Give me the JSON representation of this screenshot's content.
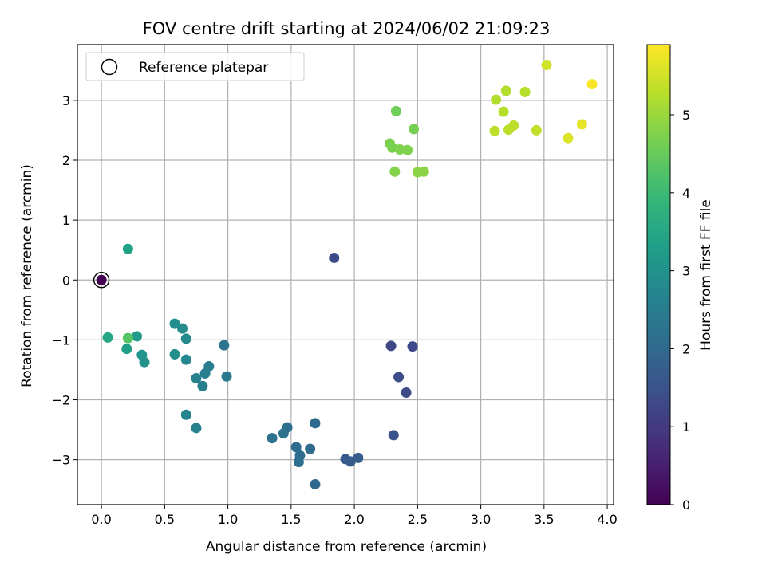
{
  "chart_data": {
    "type": "scatter",
    "title": "FOV centre drift starting at 2024/06/02 21:09:23",
    "xlabel": "Angular distance from reference (arcmin)",
    "ylabel": "Rotation from reference (arcmin)",
    "xlim": [
      -0.19,
      4.05
    ],
    "ylim": [
      -3.75,
      3.93
    ],
    "xticks": [
      0.0,
      0.5,
      1.0,
      1.5,
      2.0,
      2.5,
      3.0,
      3.5,
      4.0
    ],
    "xtick_labels": [
      "0.0",
      "0.5",
      "1.0",
      "1.5",
      "2.0",
      "2.5",
      "3.0",
      "3.5",
      "4.0"
    ],
    "yticks": [
      -3,
      -2,
      -1,
      0,
      1,
      2,
      3
    ],
    "ytick_labels": [
      "−3",
      "−2",
      "−1",
      "0",
      "1",
      "2",
      "3"
    ],
    "grid": true,
    "colormap": "viridis",
    "colorbar": {
      "label": "Hours from first FF file",
      "range": [
        0,
        5.9
      ],
      "ticks": [
        0,
        1,
        2,
        3,
        4,
        5
      ],
      "tick_labels": [
        "0",
        "1",
        "2",
        "3",
        "4",
        "5"
      ]
    },
    "legend": {
      "placement": "upper-left",
      "entries": [
        {
          "label": "Reference platepar",
          "marker": "open-circle"
        }
      ]
    },
    "reference_point": {
      "x": 0.0,
      "y": 0.0
    },
    "points": [
      {
        "x": 0.0,
        "y": 0.0,
        "c": 0.0
      },
      {
        "x": 1.84,
        "y": 0.37,
        "c": 1.3
      },
      {
        "x": 2.29,
        "y": -1.1,
        "c": 1.25
      },
      {
        "x": 2.46,
        "y": -1.11,
        "c": 1.3
      },
      {
        "x": 2.35,
        "y": -1.62,
        "c": 1.4
      },
      {
        "x": 2.41,
        "y": -1.88,
        "c": 1.35
      },
      {
        "x": 2.31,
        "y": -2.59,
        "c": 1.5
      },
      {
        "x": 1.93,
        "y": -2.99,
        "c": 1.7
      },
      {
        "x": 1.97,
        "y": -3.03,
        "c": 1.7
      },
      {
        "x": 2.03,
        "y": -2.97,
        "c": 1.75
      },
      {
        "x": 1.69,
        "y": -3.41,
        "c": 2.0
      },
      {
        "x": 1.69,
        "y": -2.39,
        "c": 2.0
      },
      {
        "x": 1.65,
        "y": -2.82,
        "c": 2.05
      },
      {
        "x": 1.54,
        "y": -2.79,
        "c": 2.1
      },
      {
        "x": 1.57,
        "y": -2.93,
        "c": 2.1
      },
      {
        "x": 1.56,
        "y": -3.04,
        "c": 2.15
      },
      {
        "x": 1.47,
        "y": -2.46,
        "c": 2.15
      },
      {
        "x": 1.44,
        "y": -2.56,
        "c": 2.2
      },
      {
        "x": 1.35,
        "y": -2.64,
        "c": 2.2
      },
      {
        "x": 0.97,
        "y": -1.09,
        "c": 2.3
      },
      {
        "x": 0.99,
        "y": -1.61,
        "c": 2.4
      },
      {
        "x": 0.85,
        "y": -1.44,
        "c": 2.5
      },
      {
        "x": 0.82,
        "y": -1.56,
        "c": 2.5
      },
      {
        "x": 0.8,
        "y": -1.77,
        "c": 2.55
      },
      {
        "x": 0.75,
        "y": -1.64,
        "c": 2.6
      },
      {
        "x": 0.75,
        "y": -2.47,
        "c": 2.6
      },
      {
        "x": 0.67,
        "y": -2.25,
        "c": 2.7
      },
      {
        "x": 0.67,
        "y": -1.33,
        "c": 2.75
      },
      {
        "x": 0.67,
        "y": -0.98,
        "c": 2.8
      },
      {
        "x": 0.64,
        "y": -0.81,
        "c": 2.85
      },
      {
        "x": 0.58,
        "y": -0.73,
        "c": 2.9
      },
      {
        "x": 0.58,
        "y": -1.24,
        "c": 2.9
      },
      {
        "x": 0.34,
        "y": -1.37,
        "c": 3.0
      },
      {
        "x": 0.32,
        "y": -1.25,
        "c": 3.05
      },
      {
        "x": 0.28,
        "y": -0.94,
        "c": 3.2
      },
      {
        "x": 0.2,
        "y": -1.15,
        "c": 3.3
      },
      {
        "x": 0.21,
        "y": 0.52,
        "c": 3.4
      },
      {
        "x": 0.05,
        "y": -0.96,
        "c": 3.5
      },
      {
        "x": 0.21,
        "y": -0.97,
        "c": 4.3
      },
      {
        "x": 2.33,
        "y": 2.82,
        "c": 4.6
      },
      {
        "x": 2.47,
        "y": 2.52,
        "c": 4.65
      },
      {
        "x": 2.28,
        "y": 2.28,
        "c": 4.7
      },
      {
        "x": 2.3,
        "y": 2.21,
        "c": 4.7
      },
      {
        "x": 2.36,
        "y": 2.18,
        "c": 4.75
      },
      {
        "x": 2.42,
        "y": 2.17,
        "c": 4.75
      },
      {
        "x": 2.32,
        "y": 1.81,
        "c": 4.8
      },
      {
        "x": 2.5,
        "y": 1.8,
        "c": 4.85
      },
      {
        "x": 2.55,
        "y": 1.81,
        "c": 4.85
      },
      {
        "x": 3.12,
        "y": 3.01,
        "c": 5.2
      },
      {
        "x": 3.2,
        "y": 3.16,
        "c": 5.2
      },
      {
        "x": 3.35,
        "y": 3.14,
        "c": 5.25
      },
      {
        "x": 3.18,
        "y": 2.81,
        "c": 5.25
      },
      {
        "x": 3.11,
        "y": 2.49,
        "c": 5.3
      },
      {
        "x": 3.22,
        "y": 2.51,
        "c": 5.3
      },
      {
        "x": 3.26,
        "y": 2.58,
        "c": 5.3
      },
      {
        "x": 3.44,
        "y": 2.5,
        "c": 5.35
      },
      {
        "x": 3.52,
        "y": 3.59,
        "c": 5.5
      },
      {
        "x": 3.69,
        "y": 2.37,
        "c": 5.6
      },
      {
        "x": 3.8,
        "y": 2.6,
        "c": 5.7
      },
      {
        "x": 3.88,
        "y": 3.27,
        "c": 5.85
      }
    ]
  }
}
